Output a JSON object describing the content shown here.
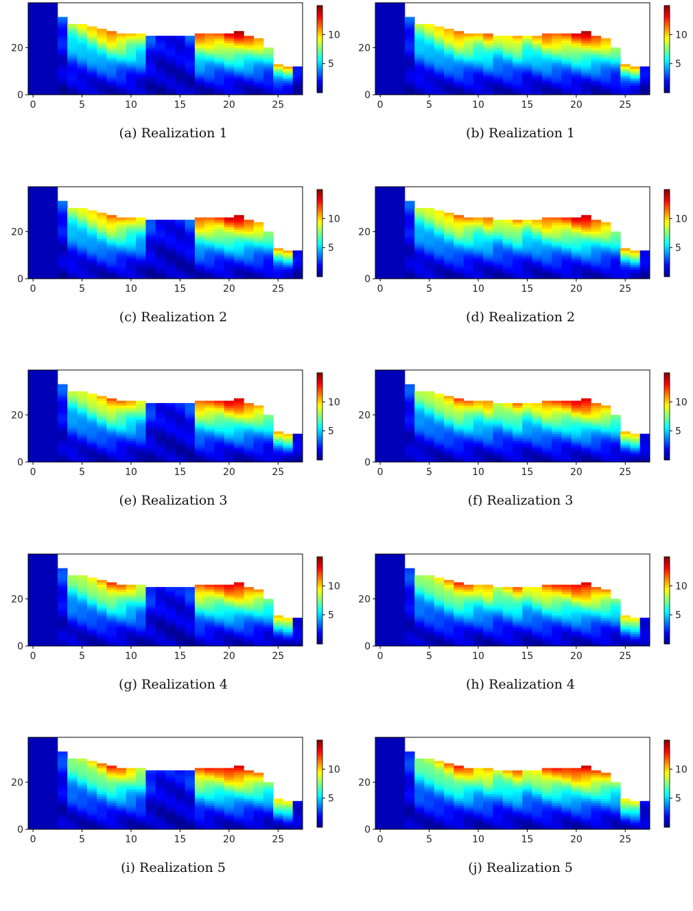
{
  "figure": {
    "colormap": "jet",
    "colorbar_ticks": [
      5,
      10
    ],
    "x_ticks": [
      0,
      5,
      10,
      15,
      20,
      25
    ],
    "y_ticks": [
      0,
      20
    ]
  },
  "chart_data": [
    {
      "type": "heatmap",
      "caption": "(a) Realization 1",
      "xlim": [
        -0.5,
        27.5
      ],
      "ylim": [
        0,
        39
      ],
      "clim": [
        0,
        15
      ],
      "variant": "a"
    },
    {
      "type": "heatmap",
      "caption": "(b) Realization 1",
      "xlim": [
        -0.5,
        27.5
      ],
      "ylim": [
        0,
        39
      ],
      "clim": [
        0,
        15
      ],
      "variant": "b"
    },
    {
      "type": "heatmap",
      "caption": "(c) Realization 2",
      "xlim": [
        -0.5,
        27.5
      ],
      "ylim": [
        0,
        39
      ],
      "clim": [
        0,
        15
      ],
      "variant": "a"
    },
    {
      "type": "heatmap",
      "caption": "(d) Realization 2",
      "xlim": [
        -0.5,
        27.5
      ],
      "ylim": [
        0,
        39
      ],
      "clim": [
        0,
        15
      ],
      "variant": "b"
    },
    {
      "type": "heatmap",
      "caption": "(e) Realization 3",
      "xlim": [
        -0.5,
        27.5
      ],
      "ylim": [
        0,
        39
      ],
      "clim": [
        0,
        15
      ],
      "variant": "a"
    },
    {
      "type": "heatmap",
      "caption": "(f) Realization 3",
      "xlim": [
        -0.5,
        27.5
      ],
      "ylim": [
        0,
        39
      ],
      "clim": [
        0,
        15
      ],
      "variant": "b"
    },
    {
      "type": "heatmap",
      "caption": "(g) Realization 4",
      "xlim": [
        -0.5,
        27.5
      ],
      "ylim": [
        0,
        39
      ],
      "clim": [
        0,
        15
      ],
      "variant": "a"
    },
    {
      "type": "heatmap",
      "caption": "(h) Realization 4",
      "xlim": [
        -0.5,
        27.5
      ],
      "ylim": [
        0,
        39
      ],
      "clim": [
        0,
        15
      ],
      "variant": "b"
    },
    {
      "type": "heatmap",
      "caption": "(i) Realization 5",
      "xlim": [
        -0.5,
        27.5
      ],
      "ylim": [
        0,
        39
      ],
      "clim": [
        0,
        15
      ],
      "variant": "a"
    },
    {
      "type": "heatmap",
      "caption": "(j) Realization 5",
      "xlim": [
        -0.5,
        27.5
      ],
      "ylim": [
        0,
        39
      ],
      "clim": [
        0,
        15
      ],
      "variant": "b"
    }
  ],
  "column_tops": [
    39,
    39,
    39,
    33,
    30,
    30,
    29,
    28,
    27,
    26,
    26,
    26,
    25,
    25,
    25,
    25,
    25,
    26,
    26,
    26,
    26,
    27,
    25,
    24,
    20,
    13,
    12,
    12
  ],
  "column_peak_values": [
    0.8,
    0.8,
    0.8,
    3,
    8,
    9,
    10,
    11,
    12,
    11,
    10,
    9,
    3,
    2,
    2,
    2,
    3,
    12,
    12,
    12,
    13,
    14,
    12,
    11,
    8,
    10,
    10,
    2
  ]
}
